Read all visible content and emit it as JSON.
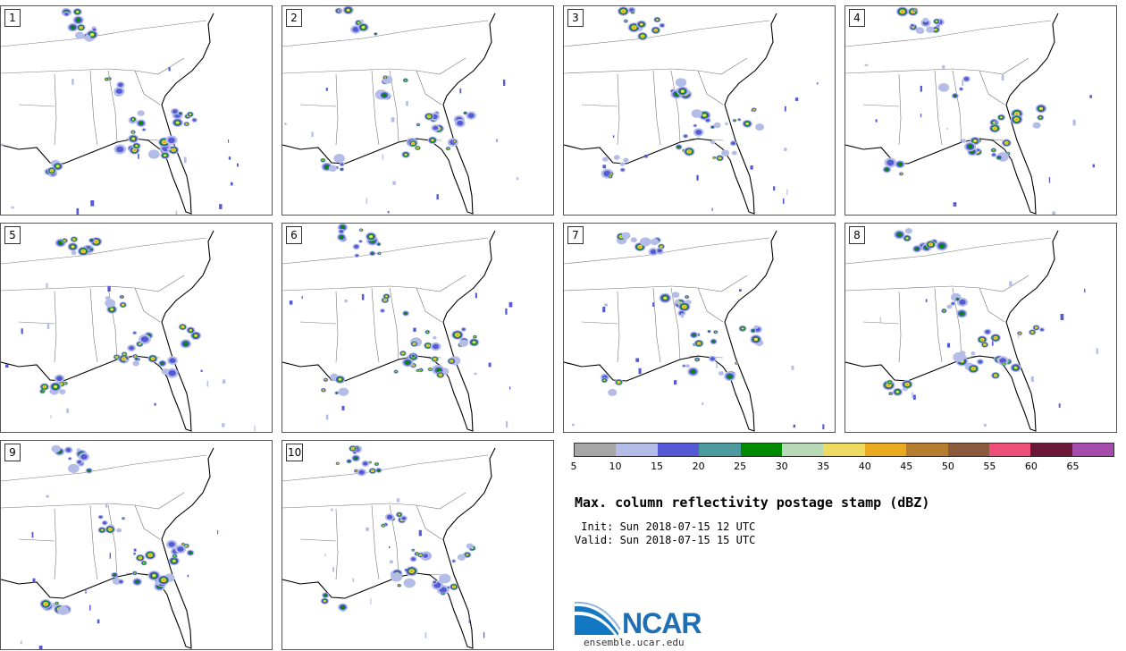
{
  "title": "Max. column reflectivity postage stamp (dBZ)",
  "init_text": " Init: Sun 2018-07-15 12 UTC",
  "valid_text": "Valid: Sun 2018-07-15 15 UTC",
  "members": [
    "1",
    "2",
    "3",
    "4",
    "5",
    "6",
    "7",
    "8",
    "9",
    "10"
  ],
  "colorbar": {
    "colors": [
      "#a6a6a6",
      "#b4bde8",
      "#545ad6",
      "#4c9a9e",
      "#008a00",
      "#b8d9b5",
      "#eedc62",
      "#eaaa1f",
      "#b57d2f",
      "#8b5a3c",
      "#ec5078",
      "#6b1838",
      "#a54cac"
    ],
    "ticks": [
      "5",
      "10",
      "15",
      "20",
      "25",
      "30",
      "35",
      "40",
      "45",
      "50",
      "55",
      "60",
      "65"
    ]
  },
  "logo": {
    "name": "NCAR",
    "url": "ensemble.ucar.edu"
  }
}
